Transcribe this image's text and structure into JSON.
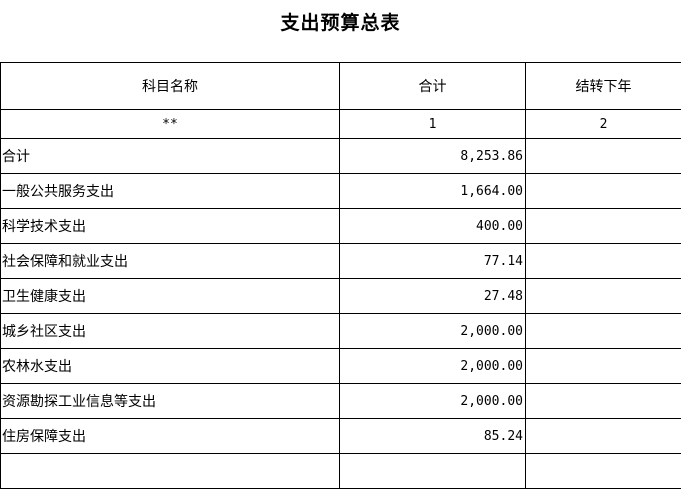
{
  "title": "支出预算总表",
  "table": {
    "headers": [
      "科目名称",
      "合计",
      "结转下年"
    ],
    "index_row": [
      "**",
      "1",
      "2"
    ],
    "rows": [
      {
        "name": "合计",
        "total": "8,253.86",
        "carryover": ""
      },
      {
        "name": "一般公共服务支出",
        "total": "1,664.00",
        "carryover": ""
      },
      {
        "name": "科学技术支出",
        "total": "400.00",
        "carryover": ""
      },
      {
        "name": "社会保障和就业支出",
        "total": "77.14",
        "carryover": ""
      },
      {
        "name": "卫生健康支出",
        "total": "27.48",
        "carryover": ""
      },
      {
        "name": "城乡社区支出",
        "total": "2,000.00",
        "carryover": ""
      },
      {
        "name": "农林水支出",
        "total": "2,000.00",
        "carryover": ""
      },
      {
        "name": "资源勘探工业信息等支出",
        "total": "2,000.00",
        "carryover": ""
      },
      {
        "name": "住房保障支出",
        "total": "85.24",
        "carryover": ""
      },
      {
        "name": "",
        "total": "",
        "carryover": ""
      }
    ]
  }
}
